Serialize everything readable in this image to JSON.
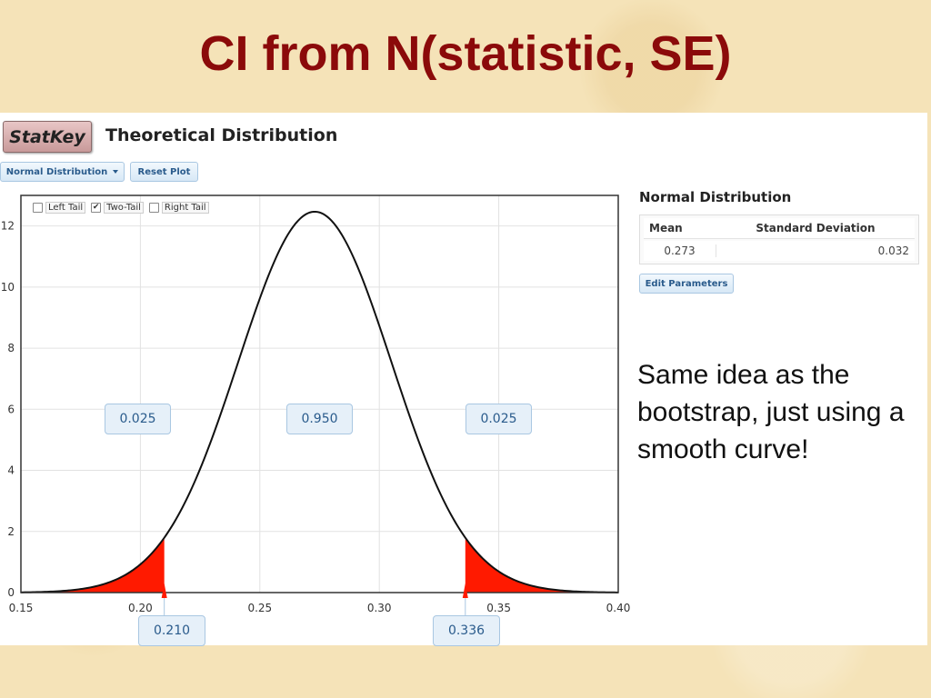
{
  "slide": {
    "title": "CI from N(statistic, SE)",
    "note": "Same idea as the bootstrap, just using a smooth curve!"
  },
  "app": {
    "logo": "StatKey",
    "title": "Theoretical Distribution",
    "dist_button": "Normal Distribution",
    "reset_button": "Reset Plot"
  },
  "tails": {
    "left_label": "Left Tail",
    "two_label": "Two-Tail",
    "right_label": "Right Tail",
    "selected": "two"
  },
  "panel": {
    "title": "Normal Distribution",
    "mean_header": "Mean",
    "sd_header": "Standard Deviation",
    "mean_value": "0.273",
    "sd_value": "0.032",
    "edit_button": "Edit Parameters"
  },
  "regions": {
    "left_area": "0.025",
    "center_area": "0.950",
    "right_area": "0.025"
  },
  "cutoffs": {
    "lower": "0.210",
    "upper": "0.336"
  },
  "colors": {
    "tail_fill": "#ff1a00",
    "curve": "#111111",
    "title": "#8b0a0a"
  },
  "chart_data": {
    "type": "area",
    "distribution": "normal",
    "mean": 0.273,
    "sd": 0.032,
    "xlim": [
      0.15,
      0.4
    ],
    "ylim": [
      0,
      13
    ],
    "x_ticks": [
      "0.15",
      "0.20",
      "0.25",
      "0.30",
      "0.35",
      "0.40"
    ],
    "y_ticks": [
      "0",
      "2",
      "4",
      "6",
      "8",
      "10",
      "12"
    ],
    "shaded_below": 0.21,
    "shaded_above": 0.336,
    "grid": true
  }
}
